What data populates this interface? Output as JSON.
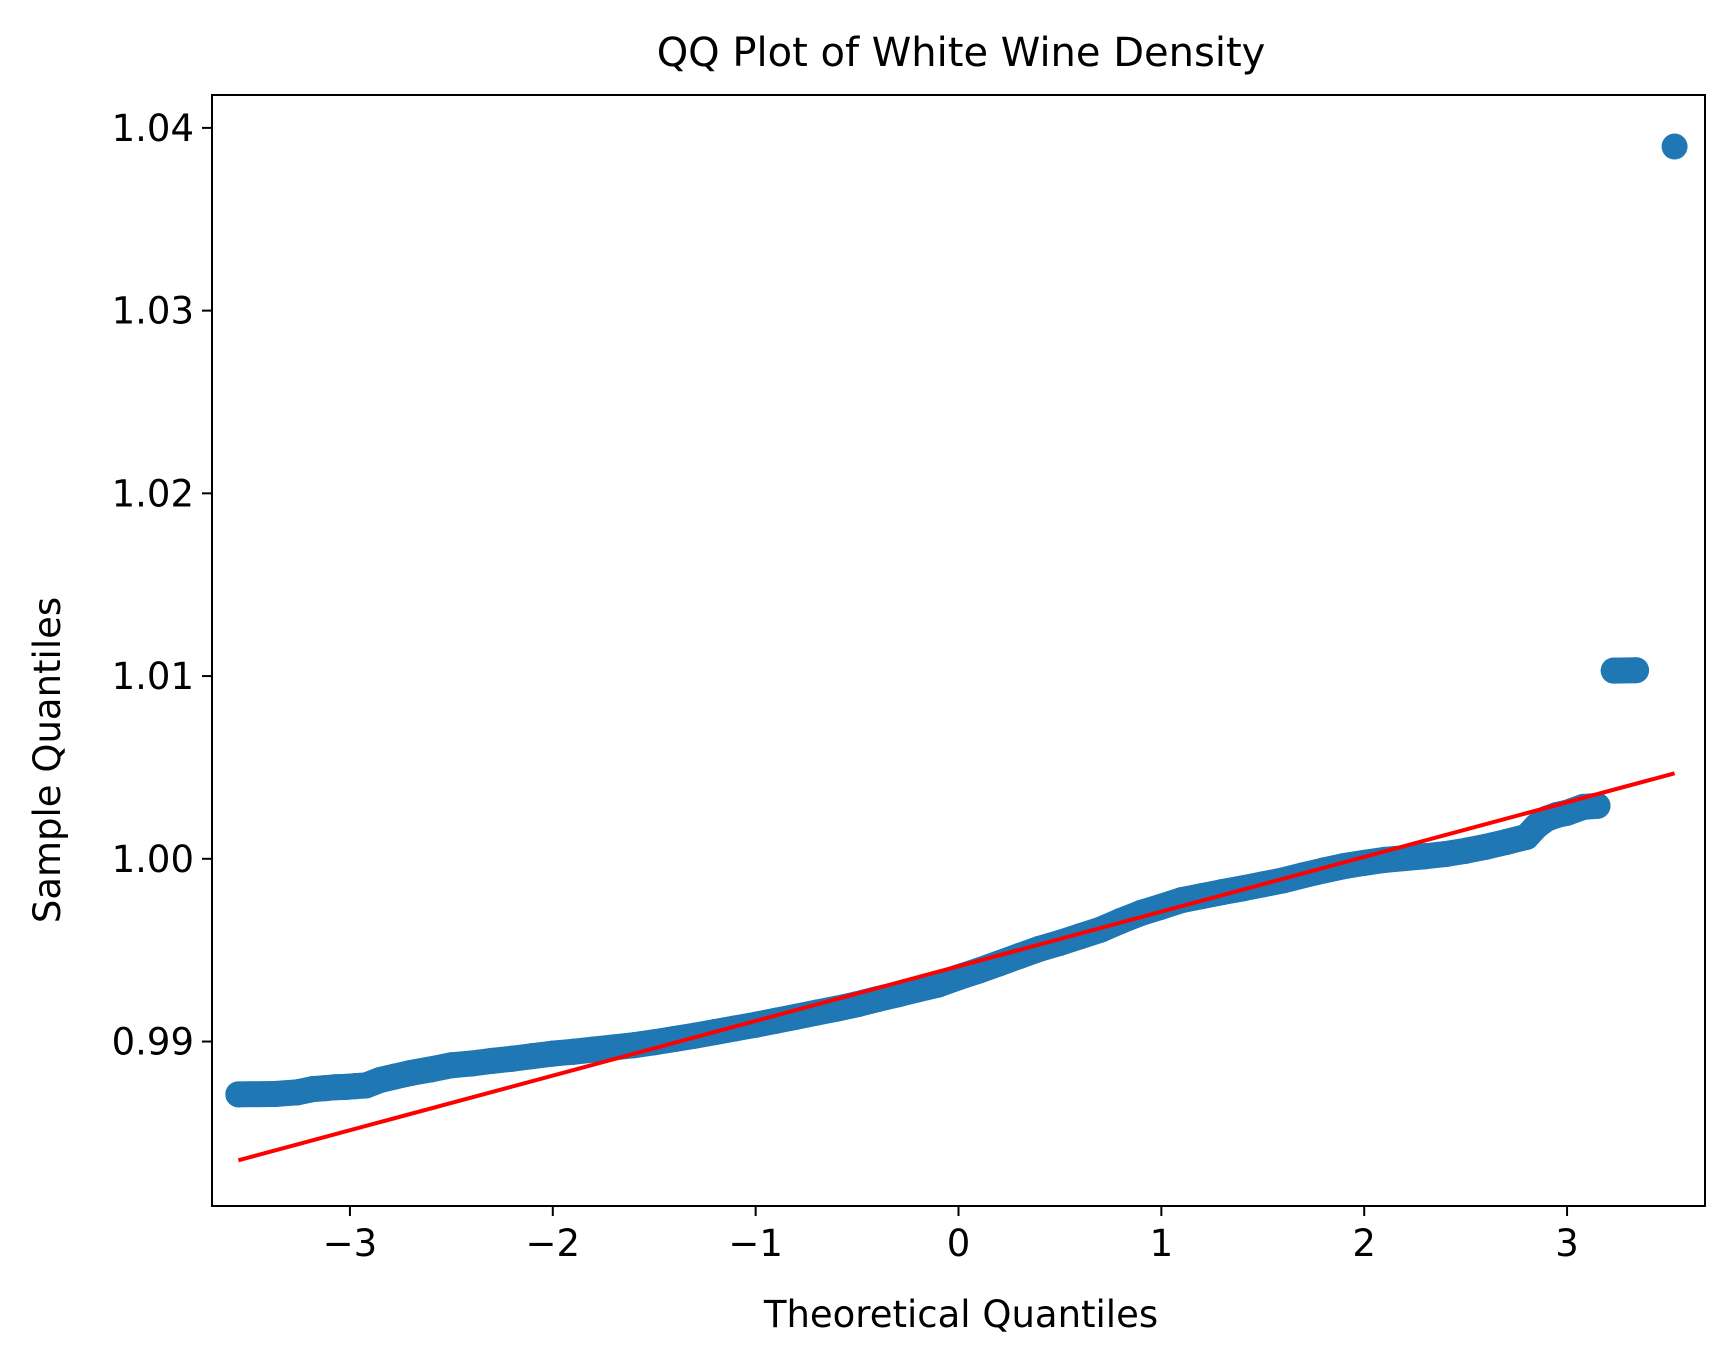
{
  "chart_data": {
    "type": "scatter",
    "title": "QQ Plot of White Wine Density",
    "xlabel": "Theoretical Quantiles",
    "ylabel": "Sample Quantiles",
    "xlim": [
      -3.68,
      3.68
    ],
    "ylim": [
      0.981,
      1.0418
    ],
    "x_ticks": [
      -3,
      -2,
      -1,
      0,
      1,
      2,
      3
    ],
    "x_tick_labels": [
      "−3",
      "−2",
      "−1",
      "0",
      "1",
      "2",
      "3"
    ],
    "y_ticks": [
      0.99,
      1.0,
      1.01,
      1.02,
      1.03,
      1.04
    ],
    "y_tick_labels": [
      "0.99",
      "1.00",
      "1.01",
      "1.02",
      "1.03",
      "1.04"
    ],
    "grid": false,
    "series": [
      {
        "kind": "points",
        "color": "#1f77b4",
        "points": [
          [
            -3.55,
            0.98711
          ],
          [
            -3.37,
            0.98713
          ],
          [
            -3.26,
            0.98722
          ],
          [
            -3.18,
            0.9874
          ],
          [
            -3.12,
            0.98745
          ],
          [
            -3.07,
            0.9875
          ],
          [
            -3.02,
            0.98752
          ],
          [
            -2.97,
            0.98756
          ],
          [
            -2.92,
            0.9876
          ],
          [
            -2.85,
            0.9879
          ],
          [
            -2.78,
            0.98808
          ],
          [
            -2.7,
            0.98828
          ],
          [
            -2.6,
            0.98848
          ],
          [
            -2.5,
            0.9887
          ],
          [
            -2.4,
            0.9888
          ],
          [
            -2.3,
            0.98894
          ],
          [
            -2.2,
            0.98906
          ],
          [
            -2.1,
            0.9892
          ],
          [
            -2.0,
            0.98934
          ],
          [
            -1.9,
            0.98944
          ],
          [
            -1.8,
            0.98956
          ],
          [
            -1.7,
            0.98968
          ],
          [
            -1.6,
            0.9898
          ],
          [
            -1.5,
            0.98996
          ],
          [
            -1.4,
            0.99014
          ],
          [
            -1.3,
            0.99032
          ],
          [
            -1.2,
            0.99052
          ],
          [
            -1.1,
            0.99072
          ],
          [
            -1.0,
            0.99092
          ],
          [
            -0.9,
            0.99114
          ],
          [
            -0.8,
            0.99136
          ],
          [
            -0.7,
            0.99158
          ],
          [
            -0.6,
            0.9918
          ],
          [
            -0.5,
            0.99204
          ],
          [
            -0.4,
            0.99232
          ],
          [
            -0.3,
            0.99258
          ],
          [
            -0.2,
            0.99286
          ],
          [
            -0.1,
            0.99312
          ],
          [
            0.0,
            0.99352
          ],
          [
            0.1,
            0.99388
          ],
          [
            0.2,
            0.99428
          ],
          [
            0.3,
            0.99468
          ],
          [
            0.4,
            0.99508
          ],
          [
            0.5,
            0.9954
          ],
          [
            0.6,
            0.99576
          ],
          [
            0.7,
            0.99612
          ],
          [
            0.8,
            0.9966
          ],
          [
            0.9,
            0.99704
          ],
          [
            1.0,
            0.99738
          ],
          [
            1.1,
            0.99774
          ],
          [
            1.2,
            0.99796
          ],
          [
            1.3,
            0.99818
          ],
          [
            1.4,
            0.99838
          ],
          [
            1.5,
            0.9986
          ],
          [
            1.6,
            0.99882
          ],
          [
            1.7,
            0.9991
          ],
          [
            1.8,
            0.99936
          ],
          [
            1.9,
            0.9996
          ],
          [
            2.0,
            0.99978
          ],
          [
            2.1,
            0.99994
          ],
          [
            2.2,
            1.00004
          ],
          [
            2.3,
            1.00014
          ],
          [
            2.4,
            1.00026
          ],
          [
            2.5,
            1.00044
          ],
          [
            2.6,
            1.00066
          ],
          [
            2.7,
            1.00092
          ],
          [
            2.8,
            1.0012
          ],
          [
            2.85,
            1.0018
          ],
          [
            2.9,
            1.0022
          ],
          [
            2.95,
            1.0024
          ],
          [
            3.0,
            1.00252
          ],
          [
            3.08,
            1.00284
          ],
          [
            3.15,
            1.0029
          ],
          [
            3.23,
            1.0103
          ],
          [
            3.34,
            1.01032
          ],
          [
            3.53,
            1.03898
          ]
        ]
      },
      {
        "kind": "line",
        "color": "#ff0000",
        "points": [
          [
            -3.55,
            0.9835
          ],
          [
            3.53,
            1.00468
          ]
        ]
      }
    ]
  }
}
